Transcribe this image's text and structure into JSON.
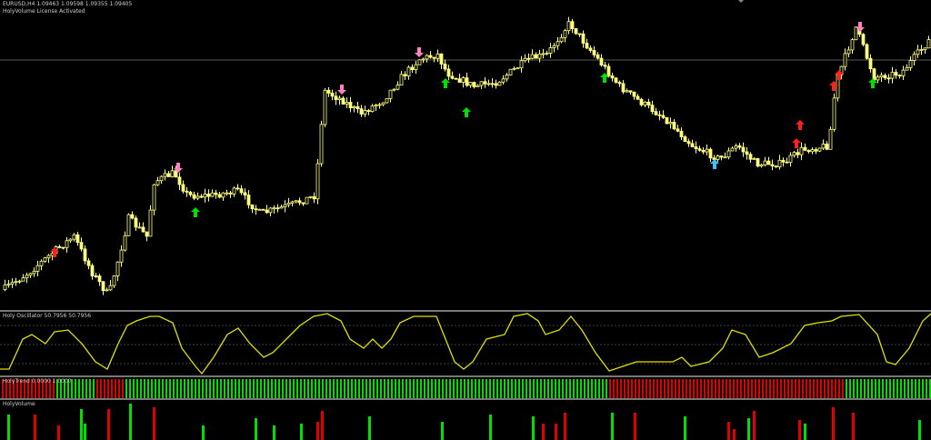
{
  "header": {
    "symbol_line": "EURUSD,H4  1.09463 1.09598 1.09355 1.09405",
    "license": "HolyVolume License Activated"
  },
  "oscillator": {
    "label": "Holy Oscillator 50.7956 50.7956"
  },
  "trend": {
    "label": "HolyTrend 0.0000 1.0000"
  },
  "volume": {
    "label": "HolyVolume"
  },
  "colors": {
    "candle": "#ffff80",
    "oscillator": "#e0e000",
    "bull": "#00e000",
    "bear": "#e00000",
    "sell_arrow": "#ff80c0",
    "buy_arrow": "#00e000",
    "alert_arrow": "#ff2020",
    "reversal_arrow": "#40c0ff"
  }
}
